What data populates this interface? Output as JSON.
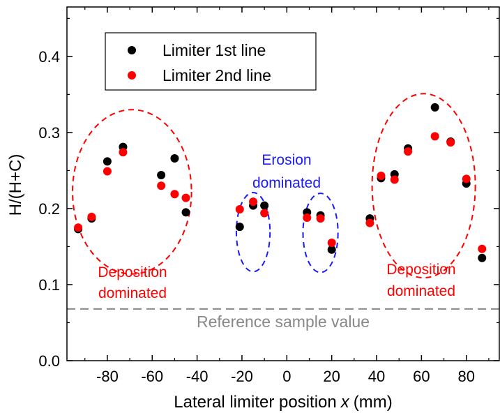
{
  "chart_data": {
    "type": "scatter",
    "xlabel": "Lateral limiter position",
    "xlabel_var": "x",
    "xlabel_unit": "(mm)",
    "ylabel": "H/(H+C)",
    "xlim": [
      -98,
      95
    ],
    "ylim": [
      0.0,
      0.465
    ],
    "xticks": [
      -80,
      -60,
      -40,
      -20,
      0,
      20,
      40,
      60,
      80
    ],
    "yticks": [
      0.0,
      0.1,
      0.2,
      0.3,
      0.4
    ],
    "legend_position": "top-left",
    "series": [
      {
        "name": "Limiter 1st line",
        "color": "#000000",
        "x": [
          -93,
          -87,
          -80,
          -73,
          -56,
          -50,
          -45,
          -21,
          -15,
          -10,
          9,
          15,
          20,
          37,
          42,
          48,
          54,
          66,
          73,
          80,
          87
        ],
        "y": [
          0.173,
          0.187,
          0.262,
          0.281,
          0.244,
          0.266,
          0.195,
          0.176,
          0.204,
          0.204,
          0.195,
          0.191,
          0.146,
          0.187,
          0.24,
          0.245,
          0.279,
          0.333,
          0.288,
          0.233,
          0.135
        ]
      },
      {
        "name": "Limiter 2nd line",
        "color": "#ff0000",
        "x": [
          -93,
          -87,
          -80,
          -73,
          -56,
          -50,
          -45,
          -21,
          -15,
          -10,
          9,
          15,
          20,
          37,
          42,
          48,
          54,
          66,
          73,
          80,
          87
        ],
        "y": [
          0.175,
          0.189,
          0.249,
          0.274,
          0.23,
          0.219,
          0.214,
          0.199,
          0.209,
          0.194,
          0.188,
          0.187,
          0.155,
          0.181,
          0.243,
          0.238,
          0.275,
          0.295,
          0.287,
          0.239,
          0.147
        ]
      }
    ],
    "reference_line": {
      "y": 0.068,
      "label": "Reference sample value",
      "color": "#888888"
    },
    "regions": [
      {
        "label": "Deposition dominated",
        "color": "#ff0000",
        "cx": -69,
        "cy": 0.222,
        "rx": 26.5,
        "ry": 0.108
      },
      {
        "label": "Erosion dominated",
        "color": "#1a1aff",
        "cx": -15,
        "cy": 0.169,
        "rx": 7.5,
        "ry": 0.052
      },
      {
        "label": "",
        "color": "#1a1aff",
        "cx": 15,
        "cy": 0.168,
        "rx": 7.8,
        "ry": 0.052
      },
      {
        "label": "Deposition dominated",
        "color": "#ff0000",
        "cx": 61,
        "cy": 0.23,
        "rx": 23,
        "ry": 0.121
      }
    ],
    "annotations": {
      "left_deposition": [
        "Deposition",
        "dominated"
      ],
      "erosion": [
        "Erosion",
        "dominated"
      ],
      "right_deposition": [
        "Deposition",
        "dominated"
      ]
    }
  }
}
